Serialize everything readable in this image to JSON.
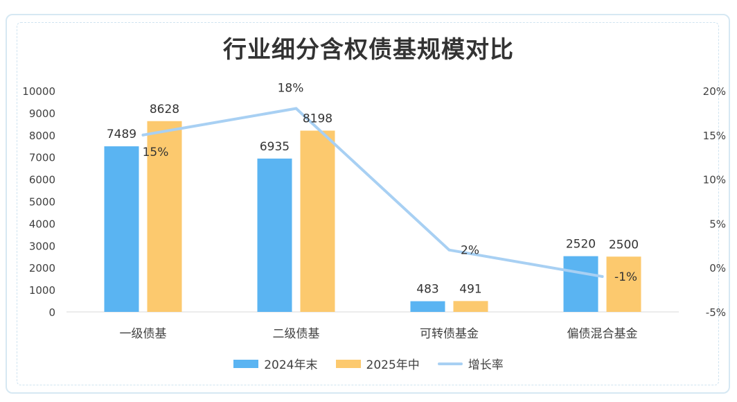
{
  "chart_data": {
    "type": "bar",
    "title": "行业细分含权债基规模对比",
    "categories": [
      "一级债基",
      "二级债基",
      "可转债基金",
      "偏债混合基金"
    ],
    "series": [
      {
        "name": "2024年末",
        "kind": "bar",
        "axis": "left",
        "color": "#5ab4f2",
        "values": [
          7489,
          6935,
          483,
          2520
        ]
      },
      {
        "name": "2025年中",
        "kind": "bar",
        "axis": "left",
        "color": "#fcc96e",
        "values": [
          8628,
          8198,
          491,
          2500
        ]
      },
      {
        "name": "增长率",
        "kind": "line",
        "axis": "right",
        "color": "#a8d0f3",
        "values": [
          15,
          18,
          2,
          -1
        ],
        "labels": [
          "15%",
          "18%",
          "2%",
          "-1%"
        ]
      }
    ],
    "y_left": {
      "min": 0,
      "max": 10000,
      "ticks": [
        "0",
        "1000",
        "2000",
        "3000",
        "4000",
        "5000",
        "6000",
        "7000",
        "8000",
        "9000",
        "10000"
      ]
    },
    "y_right": {
      "min": -5,
      "max": 20,
      "ticks": [
        "-5%",
        "0%",
        "5%",
        "10%",
        "15%",
        "20%"
      ]
    },
    "grid": false,
    "legend": "bottom"
  }
}
